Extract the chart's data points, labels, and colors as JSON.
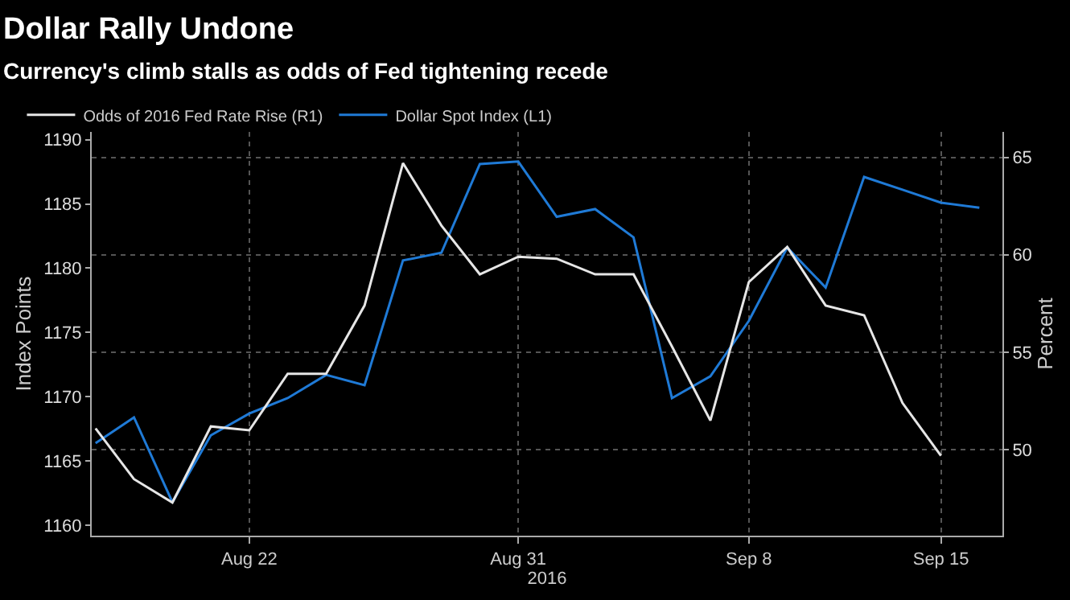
{
  "chart_data": {
    "type": "line",
    "title": "Dollar Rally Undone",
    "subtitle": "Currency's climb stalls as odds of Fed tightening recede",
    "categories": [
      null,
      null,
      null,
      null,
      "Aug 22",
      null,
      null,
      null,
      null,
      null,
      null,
      "Aug 31",
      null,
      null,
      null,
      null,
      null,
      "Sep 8",
      null,
      null,
      null,
      null,
      "Sep 15",
      null
    ],
    "xlabel": "2016",
    "ylabel": "Index Points",
    "y2label": "Percent",
    "series": [
      {
        "name": "Odds of 2016 Fed Rate Rise (R1)",
        "color": "#e6e6e6",
        "axis": "y2",
        "values": [
          51.1,
          48.5,
          47.3,
          51.2,
          51.0,
          53.9,
          53.9,
          57.4,
          64.7,
          61.5,
          59.0,
          59.9,
          59.8,
          59.0,
          59.0,
          55.3,
          51.5,
          58.6,
          60.4,
          57.4,
          56.9,
          52.4,
          49.7,
          null
        ]
      },
      {
        "name": "Dollar Spot Index (L1)",
        "color": "#1f7ad6",
        "values": [
          1166.4,
          1168.4,
          1161.8,
          1167.0,
          1168.7,
          1169.9,
          1171.7,
          1170.9,
          1180.6,
          1181.2,
          1188.1,
          1188.3,
          1184.0,
          1184.6,
          1182.4,
          1169.9,
          1171.6,
          1175.9,
          1181.6,
          1178.5,
          1187.1,
          1186.1,
          1185.1,
          1184.7
        ]
      }
    ],
    "ylim": [
      1159.2,
      1190.6
    ],
    "yticks": [
      1160,
      1165,
      1170,
      1175,
      1180,
      1185,
      1190
    ],
    "y2lim": [
      45.6,
      66.3
    ],
    "y2ticks": [
      50,
      55,
      60,
      65
    ],
    "grid": true,
    "legend": "top left",
    "marker": "none",
    "line_style": "solid"
  }
}
